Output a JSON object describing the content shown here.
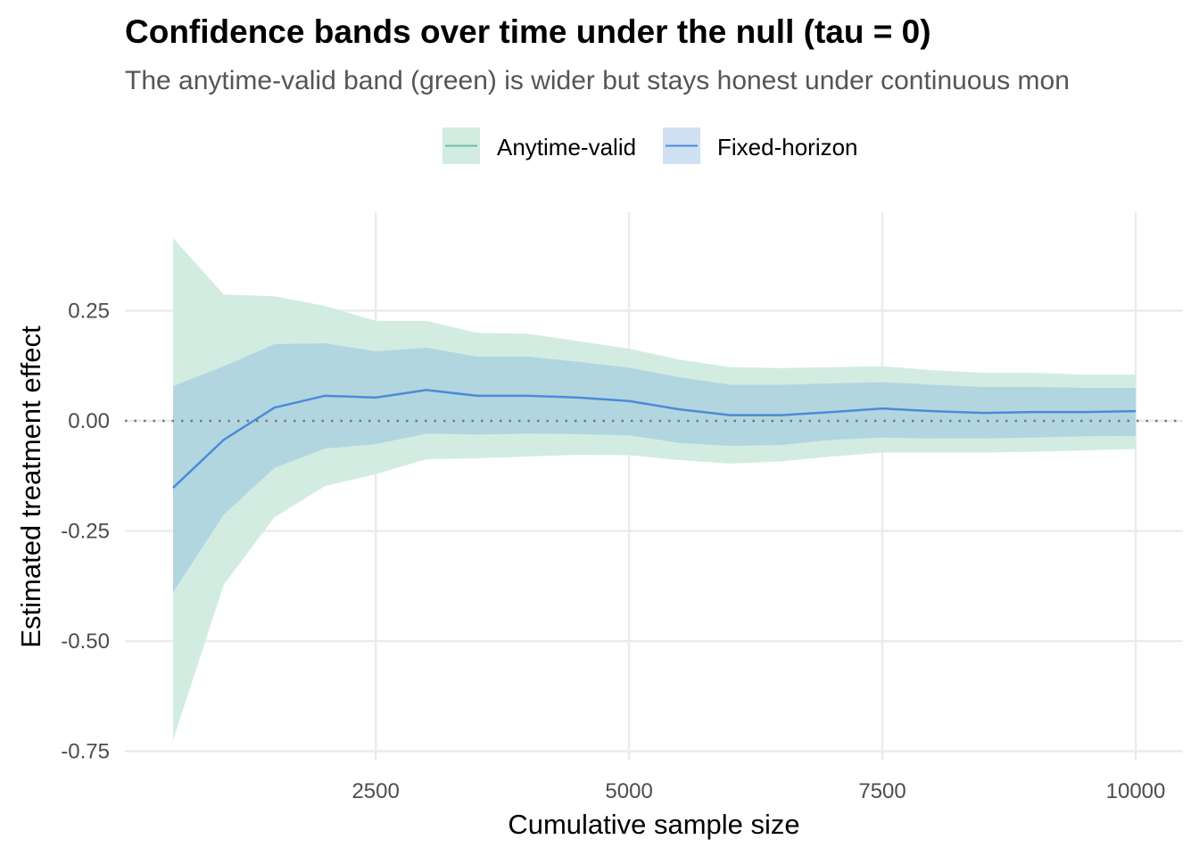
{
  "chart_data": {
    "type": "area",
    "title": "Confidence bands over time under the null (tau = 0)",
    "subtitle": "The anytime-valid band (green) is wider but stays honest under continuous mon",
    "xlabel": "Cumulative sample size",
    "ylabel": "Estimated treatment effect",
    "xlim": [
      0,
      10400
    ],
    "ylim": [
      -0.76,
      0.48
    ],
    "x_ticks": [
      2500,
      5000,
      7500,
      10000
    ],
    "x_tick_labels": [
      "2500",
      "5000",
      "7500",
      "10000"
    ],
    "y_ticks": [
      0.25,
      0,
      -0.25,
      -0.5,
      -0.75
    ],
    "y_tick_labels": [
      "0.25",
      "0.00",
      "-0.25",
      "-0.50",
      "-0.75"
    ],
    "reference_line": 0,
    "grid": true,
    "legend_position": "top",
    "legend": [
      "Anytime-valid",
      "Fixed-horizon"
    ],
    "colors": {
      "anytime_fill": "#d3ece2",
      "anytime_line": "#66c2a5",
      "fixed_fill": "#b2d6e0",
      "fixed_key": "#cfe0f3",
      "estimate_line": "#4a8bd9",
      "grid": "#ebebeb"
    },
    "x": [
      500,
      1000,
      1500,
      2000,
      2500,
      3000,
      3500,
      4000,
      4500,
      5000,
      5500,
      6000,
      6500,
      7000,
      7500,
      8000,
      8500,
      9000,
      9500,
      10000
    ],
    "estimate": [
      -0.152,
      -0.043,
      0.03,
      0.057,
      0.053,
      0.07,
      0.057,
      0.057,
      0.053,
      0.045,
      0.026,
      0.013,
      0.013,
      0.02,
      0.028,
      0.022,
      0.018,
      0.02,
      0.02,
      0.022
    ],
    "series": [
      {
        "name": "Anytime-valid",
        "lower": [
          -0.725,
          -0.372,
          -0.219,
          -0.148,
          -0.121,
          -0.087,
          -0.085,
          -0.081,
          -0.077,
          -0.078,
          -0.089,
          -0.097,
          -0.092,
          -0.081,
          -0.072,
          -0.072,
          -0.072,
          -0.07,
          -0.067,
          -0.064
        ],
        "upper": [
          0.415,
          0.287,
          0.283,
          0.261,
          0.227,
          0.227,
          0.2,
          0.198,
          0.181,
          0.164,
          0.139,
          0.122,
          0.12,
          0.122,
          0.124,
          0.115,
          0.109,
          0.109,
          0.105,
          0.105
        ]
      },
      {
        "name": "Fixed-horizon",
        "lower": [
          -0.389,
          -0.213,
          -0.107,
          -0.063,
          -0.053,
          -0.029,
          -0.031,
          -0.029,
          -0.03,
          -0.033,
          -0.05,
          -0.057,
          -0.055,
          -0.043,
          -0.038,
          -0.04,
          -0.04,
          -0.038,
          -0.035,
          -0.034
        ],
        "upper": [
          0.079,
          0.124,
          0.174,
          0.176,
          0.158,
          0.166,
          0.146,
          0.146,
          0.134,
          0.121,
          0.099,
          0.082,
          0.082,
          0.085,
          0.088,
          0.082,
          0.077,
          0.077,
          0.075,
          0.075
        ]
      }
    ]
  }
}
